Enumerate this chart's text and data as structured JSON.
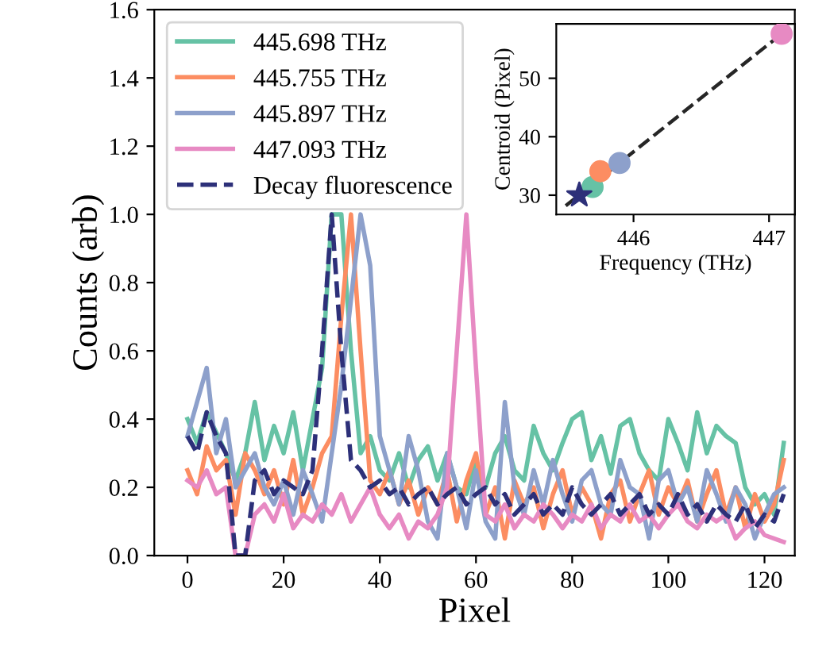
{
  "chart_data": [
    {
      "type": "line",
      "xlabel": "Pixel",
      "ylabel": "Counts (arb)",
      "x": [
        0,
        2,
        4,
        6,
        8,
        10,
        12,
        14,
        16,
        18,
        20,
        22,
        24,
        26,
        28,
        30,
        32,
        34,
        36,
        38,
        40,
        42,
        44,
        46,
        48,
        50,
        52,
        54,
        56,
        58,
        60,
        62,
        64,
        66,
        68,
        70,
        72,
        74,
        76,
        78,
        80,
        82,
        84,
        86,
        88,
        90,
        92,
        94,
        96,
        98,
        100,
        102,
        104,
        106,
        108,
        110,
        112,
        114,
        116,
        118,
        120,
        122,
        124
      ],
      "series": [
        {
          "name": "445.698 THz",
          "color": "#66c2a5",
          "values": [
            0.4,
            0.33,
            0.42,
            0.36,
            0.3,
            0.22,
            0.3,
            0.45,
            0.28,
            0.38,
            0.3,
            0.42,
            0.25,
            0.4,
            0.55,
            1.0,
            1.0,
            0.6,
            0.3,
            0.35,
            0.25,
            0.22,
            0.3,
            0.2,
            0.28,
            0.32,
            0.22,
            0.3,
            0.2,
            0.18,
            0.28,
            0.2,
            0.3,
            0.35,
            0.25,
            0.22,
            0.38,
            0.3,
            0.25,
            0.33,
            0.4,
            0.42,
            0.28,
            0.35,
            0.24,
            0.38,
            0.4,
            0.3,
            0.25,
            0.22,
            0.4,
            0.33,
            0.25,
            0.42,
            0.3,
            0.38,
            0.35,
            0.33,
            0.2,
            0.15,
            0.18,
            0.12,
            0.33
          ]
        },
        {
          "name": "445.755 THz",
          "color": "#fc8d62",
          "values": [
            0.25,
            0.18,
            0.32,
            0.25,
            0.28,
            0.12,
            0.3,
            0.25,
            0.18,
            0.25,
            0.15,
            0.28,
            0.12,
            0.2,
            0.3,
            0.35,
            0.7,
            1.0,
            0.6,
            0.22,
            0.18,
            0.25,
            0.15,
            0.22,
            0.12,
            0.2,
            0.15,
            0.25,
            0.1,
            0.22,
            0.3,
            0.12,
            0.2,
            0.05,
            0.22,
            0.15,
            0.2,
            0.08,
            0.18,
            0.25,
            0.12,
            0.2,
            0.15,
            0.05,
            0.18,
            0.22,
            0.1,
            0.18,
            0.25,
            0.12,
            0.2,
            0.15,
            0.22,
            0.1,
            0.18,
            0.25,
            0.12,
            0.2,
            0.08,
            0.18,
            0.1,
            0.15,
            0.28
          ]
        },
        {
          "name": "445.897 THz",
          "color": "#8da0cb",
          "values": [
            0.35,
            0.45,
            0.55,
            0.3,
            0.4,
            0.2,
            0.25,
            0.3,
            0.2,
            0.15,
            0.22,
            0.12,
            0.25,
            0.18,
            0.1,
            0.3,
            0.5,
            0.75,
            1.0,
            0.85,
            0.35,
            0.25,
            0.15,
            0.35,
            0.25,
            0.1,
            0.05,
            0.3,
            0.2,
            0.08,
            0.25,
            0.1,
            0.05,
            0.45,
            0.2,
            0.12,
            0.25,
            0.15,
            0.28,
            0.18,
            0.1,
            0.22,
            0.25,
            0.15,
            0.12,
            0.28,
            0.2,
            0.18,
            0.05,
            0.22,
            0.25,
            0.15,
            0.2,
            0.1,
            0.25,
            0.18,
            0.1,
            0.2,
            0.15,
            0.05,
            0.12,
            0.18,
            0.2
          ]
        },
        {
          "name": "447.093 THz",
          "color": "#e78ac3",
          "values": [
            0.22,
            0.2,
            0.25,
            0.18,
            0.2,
            0.0,
            0.0,
            0.12,
            0.15,
            0.1,
            0.18,
            0.08,
            0.12,
            0.1,
            0.15,
            0.12,
            0.18,
            0.1,
            0.15,
            0.2,
            0.12,
            0.08,
            0.12,
            0.05,
            0.1,
            0.08,
            0.12,
            0.2,
            0.6,
            1.0,
            0.55,
            0.12,
            0.1,
            0.15,
            0.08,
            0.12,
            0.1,
            0.15,
            0.12,
            0.08,
            0.12,
            0.1,
            0.15,
            0.08,
            0.12,
            0.1,
            0.15,
            0.1,
            0.12,
            0.08,
            0.12,
            0.15,
            0.1,
            0.08,
            0.12,
            0.1,
            0.12,
            0.05,
            0.08,
            0.1,
            0.06,
            0.05,
            0.04
          ]
        },
        {
          "name": "Decay fluorescence",
          "color": "#2d3079",
          "line_style": "dashed",
          "values": [
            0.35,
            0.3,
            0.42,
            0.35,
            0.3,
            0.0,
            0.0,
            0.22,
            0.25,
            0.18,
            0.22,
            0.2,
            0.18,
            0.25,
            0.6,
            1.0,
            0.6,
            0.28,
            0.25,
            0.2,
            0.22,
            0.18,
            0.2,
            0.15,
            0.18,
            0.2,
            0.15,
            0.18,
            0.2,
            0.15,
            0.18,
            0.2,
            0.15,
            0.18,
            0.12,
            0.15,
            0.18,
            0.12,
            0.15,
            0.12,
            0.2,
            0.15,
            0.12,
            0.15,
            0.18,
            0.12,
            0.15,
            0.18,
            0.12,
            0.15,
            0.12,
            0.18,
            0.12,
            0.15,
            0.1,
            0.15,
            0.12,
            0.1,
            0.15,
            0.08,
            0.12,
            0.1,
            0.18
          ]
        }
      ],
      "xlim": [
        -6.9,
        126.3
      ],
      "ylim": [
        0,
        1.6
      ],
      "xticks": [
        0,
        20,
        40,
        60,
        80,
        100,
        120
      ],
      "yticks": [
        {
          "value": 0,
          "label": "0.0"
        },
        {
          "value": 0.2,
          "label": "0.2"
        },
        {
          "value": 0.4,
          "label": "0.4"
        },
        {
          "value": 0.6,
          "label": "0.6"
        },
        {
          "value": 0.8,
          "label": "0.8"
        },
        {
          "value": 1.0,
          "label": "1.0"
        },
        {
          "value": 1.2,
          "label": "1.2"
        },
        {
          "value": 1.4,
          "label": "1.4"
        },
        {
          "value": 1.6,
          "label": "1.6"
        }
      ],
      "line_style": "solid",
      "legend": "top left",
      "grid": false
    },
    {
      "type": "scatter",
      "xlabel": "Frequency (THz)",
      "ylabel": "Centroid (Pixel)",
      "series": [
        {
          "type": "line",
          "color": "#262626",
          "line_style": "dashed",
          "marker": "none",
          "x": [
            445.5,
            447.093
          ],
          "values": [
            28.2,
            57.6
          ]
        },
        {
          "type": "scatter",
          "marker": "circle",
          "x": [
            445.698,
            445.755,
            445.897,
            447.093
          ],
          "values": [
            31.4,
            34.1,
            35.5,
            57.6
          ],
          "colors": [
            "#66c2a5",
            "#fc8d62",
            "#8da0cb",
            "#e78ac3"
          ]
        },
        {
          "type": "scatter",
          "marker": "star",
          "color": "#2d3079",
          "x": [
            445.6
          ],
          "values": [
            30.0
          ]
        }
      ],
      "xlim": [
        445.43,
        447.19
      ],
      "ylim": [
        26.7,
        59.3
      ],
      "xticks": [
        446,
        447
      ],
      "yticks": [
        30,
        40,
        50
      ],
      "grid": false
    }
  ]
}
